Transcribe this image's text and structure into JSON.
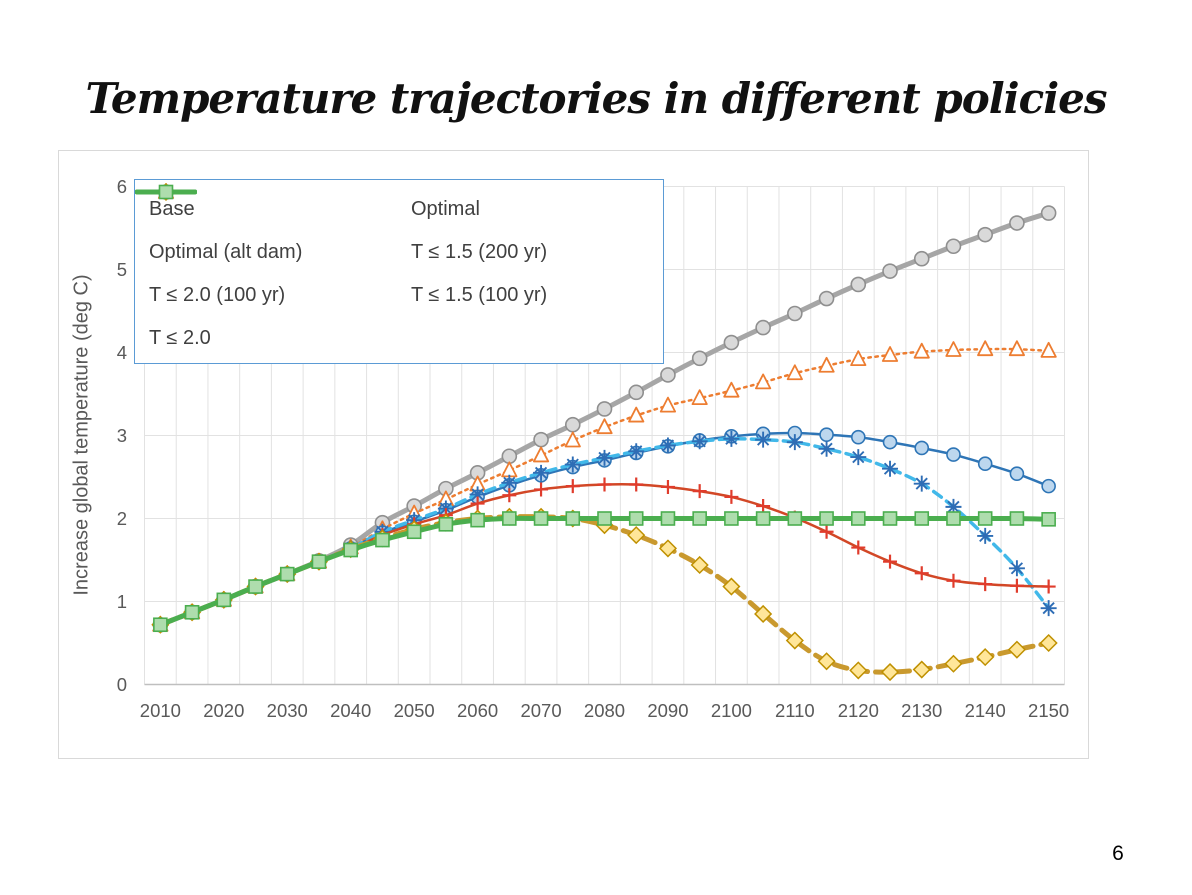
{
  "title": "Temperature trajectories in different policies",
  "page_number": "6",
  "colors": {
    "background": "#ffffff",
    "title_text": "#111111",
    "frame_border": "#d9d9d9",
    "gridline": "#e2e2e2",
    "axis_line": "#bfbfbf",
    "tick_text": "#595959",
    "axis_title_text": "#595959",
    "legend_border": "#5B9BD5",
    "legend_text": "#404040"
  },
  "chart_data": {
    "type": "line",
    "x": [
      2010,
      2015,
      2020,
      2025,
      2030,
      2035,
      2040,
      2045,
      2050,
      2055,
      2060,
      2065,
      2070,
      2075,
      2080,
      2085,
      2090,
      2095,
      2100,
      2105,
      2110,
      2115,
      2120,
      2125,
      2130,
      2135,
      2140,
      2145,
      2150
    ],
    "xtick_step_years": 10,
    "ylabel": "Increase global temperature (deg C)",
    "ylim": [
      0,
      6
    ],
    "yticks": [
      0,
      1,
      2,
      3,
      4,
      5,
      6
    ],
    "grid": true,
    "legend_position": "top-left-inside",
    "series": [
      {
        "name": "Base",
        "color": "#A6A6A6",
        "line": "solid",
        "width": 5,
        "marker": "circle",
        "marker_size": 7,
        "marker_fill": "#D9D9D9",
        "marker_stroke": "#8F8F8F",
        "values": [
          0.72,
          0.87,
          1.02,
          1.18,
          1.33,
          1.49,
          1.68,
          1.95,
          2.15,
          2.36,
          2.55,
          2.75,
          2.95,
          3.13,
          3.32,
          3.52,
          3.73,
          3.93,
          4.12,
          4.3,
          4.47,
          4.65,
          4.82,
          4.98,
          5.13,
          5.28,
          5.42,
          5.56,
          5.68
        ]
      },
      {
        "name": "Optimal",
        "color": "#ED7D31",
        "line": "dot",
        "width": 2.5,
        "marker": "triangle",
        "marker_size": 8,
        "marker_fill": "#FFFFFF",
        "marker_stroke": "#ED7D31",
        "values": [
          0.72,
          0.87,
          1.02,
          1.18,
          1.33,
          1.48,
          1.65,
          1.87,
          2.06,
          2.23,
          2.41,
          2.58,
          2.76,
          2.94,
          3.1,
          3.24,
          3.36,
          3.45,
          3.54,
          3.64,
          3.75,
          3.84,
          3.92,
          3.97,
          4.01,
          4.03,
          4.04,
          4.04,
          4.02
        ]
      },
      {
        "name": "Optimal (alt dam)",
        "color": "#2E75B6",
        "line": "solid",
        "width": 2.5,
        "marker": "circle",
        "marker_size": 6.5,
        "marker_fill": "#BDD7EE",
        "marker_stroke": "#2E75B6",
        "values": [
          0.72,
          0.87,
          1.02,
          1.18,
          1.33,
          1.48,
          1.64,
          1.83,
          1.96,
          2.1,
          2.26,
          2.4,
          2.52,
          2.62,
          2.7,
          2.79,
          2.87,
          2.94,
          2.99,
          3.02,
          3.03,
          3.01,
          2.98,
          2.92,
          2.85,
          2.77,
          2.66,
          2.54,
          2.39
        ]
      },
      {
        "name": "T ≤ 1.5 (200 yr)",
        "color": "#41B8E9",
        "line": "dash",
        "width": 3.5,
        "marker": "asterisk",
        "marker_size": 8,
        "marker_stroke": "#2E6DB5",
        "values": [
          0.72,
          0.87,
          1.02,
          1.18,
          1.33,
          1.48,
          1.64,
          1.84,
          1.98,
          2.12,
          2.29,
          2.43,
          2.55,
          2.65,
          2.73,
          2.81,
          2.88,
          2.93,
          2.96,
          2.95,
          2.92,
          2.84,
          2.74,
          2.6,
          2.42,
          2.14,
          1.79,
          1.4,
          0.92
        ]
      },
      {
        "name": "T ≤ 2.0 (100 yr)",
        "color": "#D24726",
        "line": "solid",
        "width": 2.5,
        "marker": "plus",
        "marker_size": 7,
        "marker_stroke": "#E03C2C",
        "values": [
          0.72,
          0.87,
          1.02,
          1.18,
          1.33,
          1.48,
          1.63,
          1.8,
          1.93,
          2.04,
          2.18,
          2.28,
          2.35,
          2.39,
          2.41,
          2.41,
          2.38,
          2.33,
          2.26,
          2.15,
          2.01,
          1.84,
          1.65,
          1.48,
          1.34,
          1.25,
          1.21,
          1.19,
          1.18
        ]
      },
      {
        "name": "T ≤ 1.5 (100 yr)",
        "color": "#C9992E",
        "line": "dash-long",
        "width": 5,
        "marker": "diamond",
        "marker_size": 8,
        "marker_fill": "#FFE699",
        "marker_stroke": "#BF9000",
        "values": [
          0.72,
          0.87,
          1.02,
          1.18,
          1.33,
          1.48,
          1.63,
          1.76,
          1.87,
          1.95,
          2.0,
          2.02,
          2.02,
          2.0,
          1.92,
          1.8,
          1.64,
          1.44,
          1.18,
          0.85,
          0.53,
          0.28,
          0.17,
          0.15,
          0.18,
          0.25,
          0.33,
          0.42,
          0.5
        ]
      },
      {
        "name": "T ≤ 2.0",
        "color": "#4BAE4F",
        "line": "solid",
        "width": 5,
        "marker": "square",
        "marker_size": 6.5,
        "marker_fill": "#AEDDAD",
        "marker_stroke": "#4BAE4F",
        "values": [
          0.72,
          0.87,
          1.02,
          1.18,
          1.33,
          1.48,
          1.62,
          1.74,
          1.84,
          1.93,
          1.98,
          2.0,
          2.0,
          2.0,
          2.0,
          2.0,
          2.0,
          2.0,
          2.0,
          2.0,
          2.0,
          2.0,
          2.0,
          2.0,
          2.0,
          2.0,
          2.0,
          2.0,
          1.99
        ]
      }
    ]
  }
}
